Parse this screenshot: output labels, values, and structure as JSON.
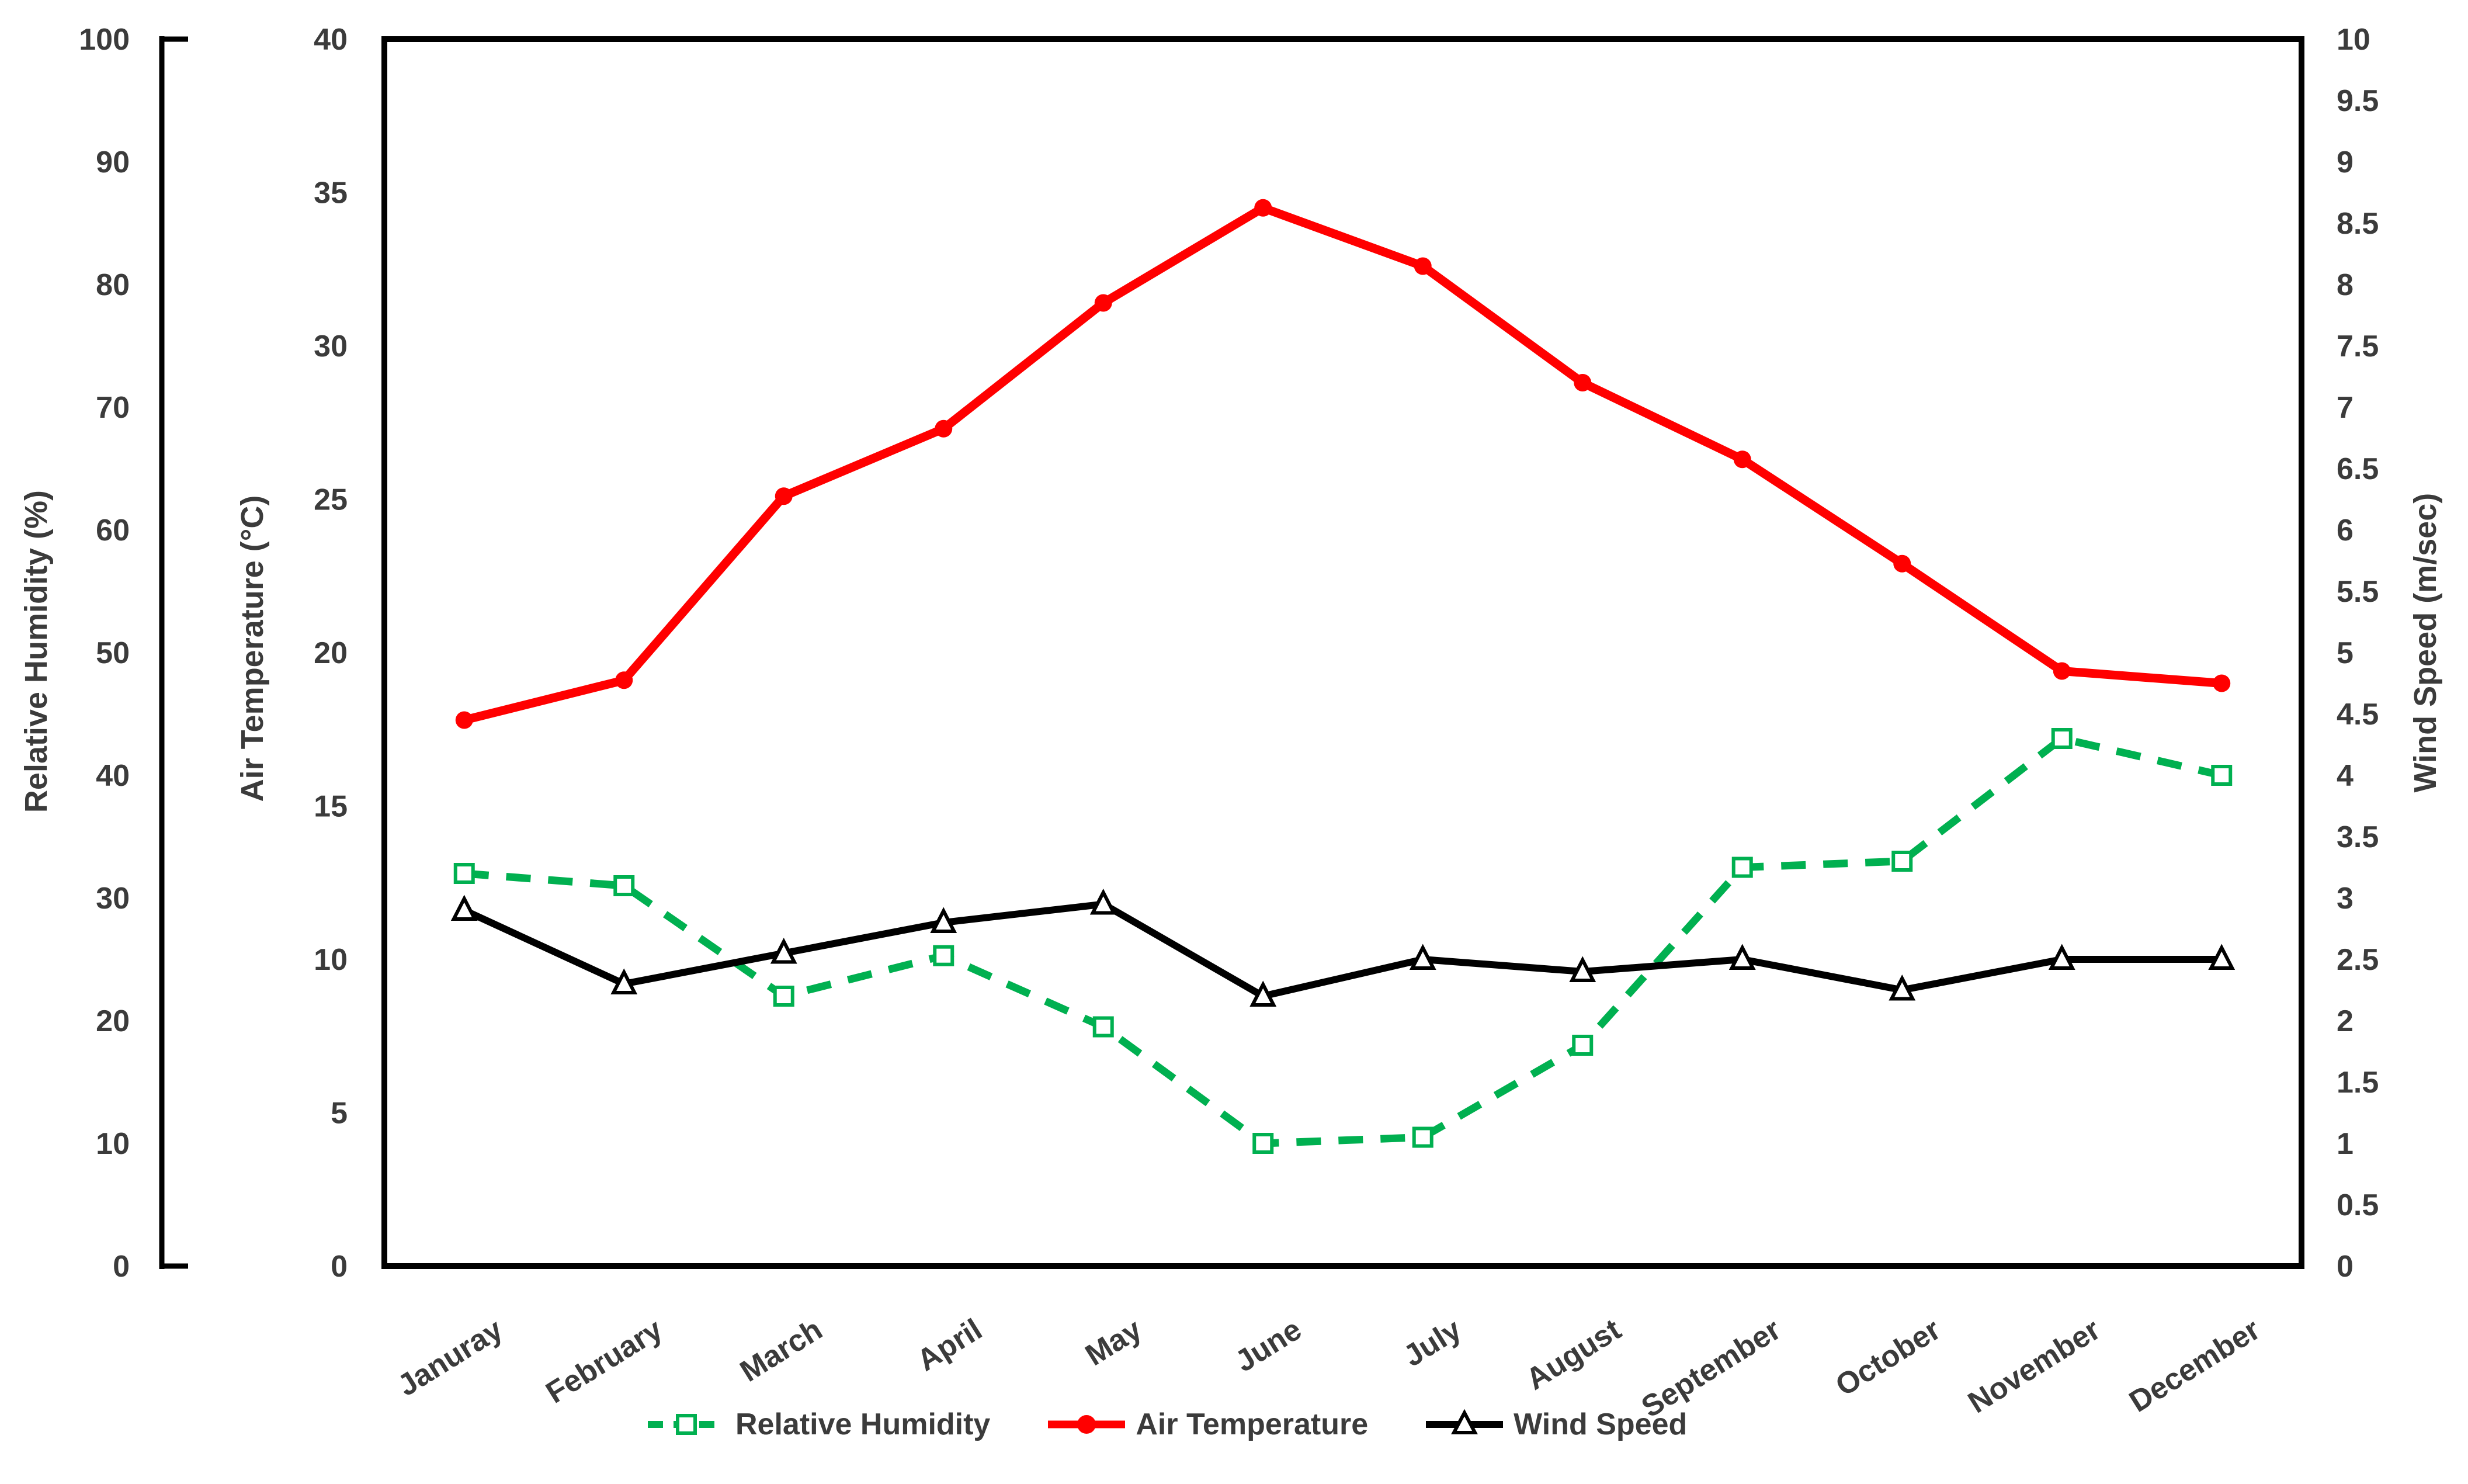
{
  "chart_data": {
    "type": "line",
    "title": "",
    "grid": false,
    "background": "#ffffff",
    "text_color": "#3b3b3b",
    "categories": [
      "Januray",
      "February",
      "March",
      "April",
      "May",
      "June",
      "July",
      "August",
      "September",
      "October",
      "November",
      "December"
    ],
    "axes": {
      "humidity": {
        "label": "Relative Humidity (%)",
        "min": 0,
        "max": 100,
        "step": 10,
        "side": "outer-left"
      },
      "temperature": {
        "label": "Air Temperature (°C)",
        "min": 0,
        "max": 40,
        "step": 5,
        "side": "left"
      },
      "wind": {
        "label": "Wind Speed (m/sec)",
        "min": 0,
        "max": 10,
        "step": 0.5,
        "side": "right"
      }
    },
    "series": [
      {
        "name": "Relative Humidity",
        "axis": "humidity",
        "color": "#00B050",
        "line": "dashed",
        "marker": "square",
        "values": [
          32,
          31,
          22,
          25.3,
          19.5,
          10,
          10.5,
          18,
          32.5,
          33,
          43,
          40
        ]
      },
      {
        "name": "Wind Speed",
        "axis": "wind",
        "color": "#000000",
        "line": "solid",
        "marker": "triangle",
        "values": [
          2.9,
          2.3,
          2.55,
          2.8,
          2.95,
          2.2,
          2.5,
          2.4,
          2.5,
          2.25,
          2.5,
          2.5
        ]
      },
      {
        "name": "Air Temperature",
        "axis": "temperature",
        "color": "#FF0000",
        "line": "solid",
        "marker": "circle",
        "values": [
          17.8,
          19.1,
          25.1,
          27.3,
          31.4,
          34.5,
          32.6,
          28.8,
          26.3,
          22.9,
          19.4,
          19
        ]
      }
    ],
    "legend": {
      "position": "bottom",
      "entries": [
        "Relative Humidity",
        "Air Temperature",
        "Wind Speed"
      ]
    }
  }
}
